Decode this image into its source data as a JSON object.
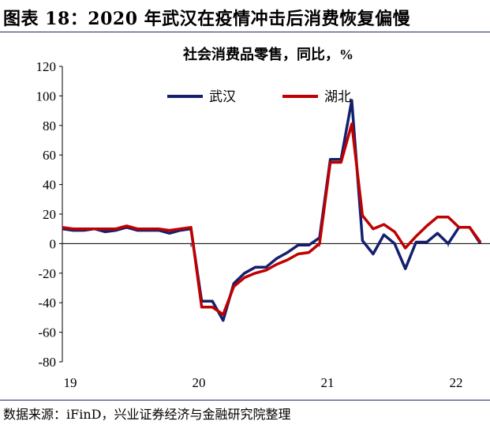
{
  "figure": {
    "title": "图表 18：2020 年武汉在疫情冲击后消费恢复偏慢",
    "source": "数据来源：iFinD，兴业证券经济与金融研究院整理"
  },
  "chart_data": {
    "type": "line",
    "title": "社会消费品零售，同比，%",
    "xlabel": "",
    "ylabel": "",
    "ylim": [
      -80,
      120
    ],
    "yticks": [
      120,
      100,
      80,
      60,
      40,
      20,
      0,
      -20,
      -40,
      -60,
      -80
    ],
    "xticks": [
      {
        "label": "19",
        "x": 0
      },
      {
        "label": "20",
        "x": 12
      },
      {
        "label": "21",
        "x": 24
      },
      {
        "label": "22",
        "x": 36
      }
    ],
    "xlim": [
      0,
      38
    ],
    "legend": {
      "placement": "top"
    },
    "grid": false,
    "series": [
      {
        "name": "武汉",
        "color": "#14206e",
        "points": [
          [
            0,
            10
          ],
          [
            1,
            9
          ],
          [
            2,
            9
          ],
          [
            3,
            10
          ],
          [
            4,
            8
          ],
          [
            5,
            9
          ],
          [
            6,
            11
          ],
          [
            7,
            9
          ],
          [
            8,
            9
          ],
          [
            9,
            9
          ],
          [
            10,
            7
          ],
          [
            11,
            9
          ],
          [
            12,
            10
          ],
          [
            13,
            -39
          ],
          [
            14,
            -39
          ],
          [
            15,
            -52
          ],
          [
            16,
            -27
          ],
          [
            17,
            -20
          ],
          [
            18,
            -16
          ],
          [
            19,
            -16
          ],
          [
            20,
            -10
          ],
          [
            21,
            -6
          ],
          [
            22,
            -1
          ],
          [
            23,
            -1
          ],
          [
            24,
            4
          ],
          [
            25,
            57
          ],
          [
            26,
            57
          ],
          [
            27,
            97
          ],
          [
            28,
            2
          ],
          [
            29,
            -7
          ],
          [
            30,
            6
          ],
          [
            31,
            0
          ],
          [
            32,
            -17
          ],
          [
            33,
            1
          ],
          [
            34,
            1
          ],
          [
            35,
            7
          ],
          [
            36,
            0
          ],
          [
            37,
            11
          ],
          [
            38,
            11
          ],
          [
            39,
            0
          ]
        ]
      },
      {
        "name": "湖北",
        "color": "#c00000",
        "points": [
          [
            0,
            11
          ],
          [
            1,
            10
          ],
          [
            2,
            10
          ],
          [
            3,
            10
          ],
          [
            4,
            10
          ],
          [
            5,
            10
          ],
          [
            6,
            12
          ],
          [
            7,
            10
          ],
          [
            8,
            10
          ],
          [
            9,
            10
          ],
          [
            10,
            9
          ],
          [
            11,
            10
          ],
          [
            12,
            11
          ],
          [
            13,
            -43
          ],
          [
            14,
            -43
          ],
          [
            15,
            -48
          ],
          [
            16,
            -29
          ],
          [
            17,
            -23
          ],
          [
            18,
            -20
          ],
          [
            19,
            -18
          ],
          [
            20,
            -14
          ],
          [
            21,
            -11
          ],
          [
            22,
            -7
          ],
          [
            23,
            -6
          ],
          [
            24,
            0
          ],
          [
            25,
            55
          ],
          [
            26,
            55
          ],
          [
            27,
            81
          ],
          [
            28,
            19
          ],
          [
            29,
            10
          ],
          [
            30,
            13
          ],
          [
            31,
            8
          ],
          [
            32,
            -3
          ],
          [
            33,
            5
          ],
          [
            34,
            12
          ],
          [
            35,
            18
          ],
          [
            36,
            18
          ],
          [
            37,
            11
          ],
          [
            38,
            11
          ],
          [
            39,
            1
          ]
        ]
      }
    ]
  }
}
